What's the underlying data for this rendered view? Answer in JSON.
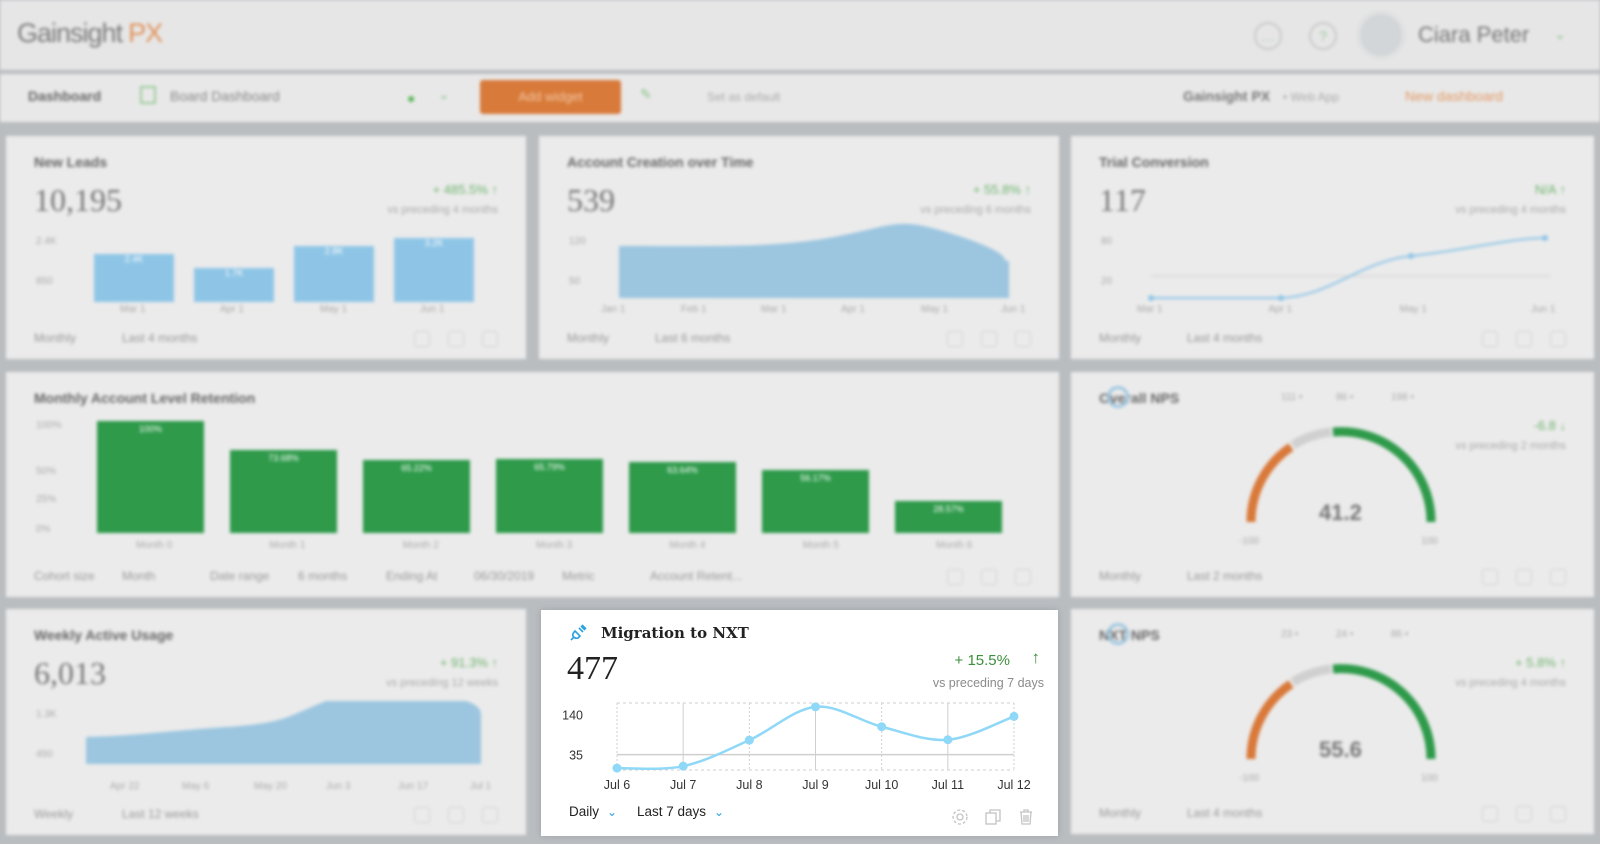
{
  "header": {
    "logo": "Gainsight",
    "logo_px": "PX",
    "user_name": "Ciara Peter",
    "icons": [
      "chat-icon",
      "help-icon",
      "avatar"
    ]
  },
  "toolbar": {
    "dashboard_label": "Dashboard",
    "board_name": "Board Dashboard",
    "add_widget": "Add widget",
    "set_default": "Set as default",
    "product": "Gainsight PX",
    "product_sub": "• Web App",
    "new_dashboard": "New dashboard"
  },
  "widgets": {
    "new_leads": {
      "title": "New Leads",
      "value": "10,195",
      "change": "+ 485.5% ↑",
      "sub": "vs preceding 4 months",
      "y_ticks": [
        "2.4K",
        "850"
      ],
      "x": [
        "Mar 1",
        "Apr 1",
        "May 1",
        "Jun 1"
      ],
      "bars": [
        2400,
        1700,
        2800,
        3200
      ],
      "bar_labels": [
        "2.4K",
        "1.7K",
        "2.8K",
        "3.2K"
      ],
      "footer": [
        "Monthly",
        "Last 4 months"
      ]
    },
    "account_creation": {
      "title": "Account Creation over Time",
      "value": "539",
      "change": "+ 55.8% ↑",
      "sub": "vs preceding 6 months",
      "y_ticks": [
        "120",
        "50"
      ],
      "x": [
        "Jan 1",
        "Feb 1",
        "Mar 1",
        "Apr 1",
        "May 1",
        "Jun 1"
      ],
      "footer": [
        "Monthly",
        "Last 6 months"
      ]
    },
    "trial_conversion": {
      "title": "Trial Conversion",
      "value": "117",
      "change": "N/A ↑",
      "sub": "vs preceding 4 months",
      "y_ticks": [
        "80",
        "20"
      ],
      "x": [
        "Mar 1",
        "Apr 1",
        "May 1",
        "Jun 1"
      ],
      "footer": [
        "Monthly",
        "Last 4 months"
      ]
    },
    "retention": {
      "title": "Monthly Account Level Retention",
      "y_ticks": [
        "100%",
        "50%",
        "25%",
        "0%"
      ],
      "x": [
        "Month 0",
        "Month 1",
        "Month 2",
        "Month 3",
        "Month 4",
        "Month 5",
        "Month 6"
      ],
      "values": [
        100,
        73.68,
        65.22,
        65.79,
        63.64,
        56.17,
        28.57
      ],
      "bar_labels": [
        "100%",
        "73.68%",
        "65.22%",
        "65.79%",
        "63.64%",
        "56.17%",
        "28.57%"
      ],
      "footer": [
        "Cohort size",
        "Month",
        "Date range",
        "6 months",
        "Ending At",
        "06/30/2019",
        "Metric",
        "Account Retent..."
      ]
    },
    "overall_nps": {
      "title": "Overall NPS",
      "legend": [
        "111 •",
        "86 •",
        "198 •"
      ],
      "change": "-6.8 ↓",
      "sub": "vs preceding 2 months",
      "score": "41.2",
      "min": "-100",
      "max": "100",
      "footer": [
        "Monthly",
        "Last 2 months"
      ]
    },
    "weekly_usage": {
      "title": "Weekly Active Usage",
      "value": "6,013",
      "change": "+ 91.3% ↑",
      "sub": "vs preceding 12 weeks",
      "y_ticks": [
        "1.3K",
        "450"
      ],
      "x": [
        "Apr 22",
        "May 6",
        "May 20",
        "Jun 3",
        "Jun 17",
        "Jul 1"
      ],
      "footer": [
        "Weekly",
        "Last 12 weeks"
      ]
    },
    "nxt_nps": {
      "title": "NXT NPS",
      "legend": [
        "23 •",
        "24 •",
        "86 •"
      ],
      "change": "+ 5.8% ↑",
      "sub": "vs preceding 4 months",
      "score": "55.6",
      "min": "-100",
      "max": "100",
      "footer": [
        "Monthly",
        "Last 4 months"
      ]
    }
  },
  "focus_widget": {
    "title": "Migration to NXT",
    "icon": "plug-icon",
    "value": "477",
    "change": "+ 15.5%",
    "change_arrow": "↑",
    "change_color": "#3c8f3c",
    "vs_text": "vs preceding 7 days",
    "granularity": "Daily",
    "range": "Last 7 days",
    "actions": [
      "gear-icon",
      "copy-icon",
      "trash-icon"
    ]
  },
  "chart_data": {
    "type": "line",
    "x": [
      "Jul 6",
      "Jul 7",
      "Jul 8",
      "Jul 9",
      "Jul 10",
      "Jul 11",
      "Jul 12"
    ],
    "values": [
      0,
      5,
      73,
      160,
      108,
      74,
      135
    ],
    "y_ticks": [
      "140",
      "35"
    ],
    "y_tick_values": [
      140,
      35
    ],
    "ylim": [
      -5,
      170
    ],
    "color": "#8fd8f7",
    "grid": true
  },
  "colors": {
    "accent_orange": "#d87a3a",
    "positive_green": "#3c8f3c",
    "link_blue": "#29a3e0",
    "bar_blue": "#8ec5e6",
    "bar_green": "#2e9a4a"
  }
}
